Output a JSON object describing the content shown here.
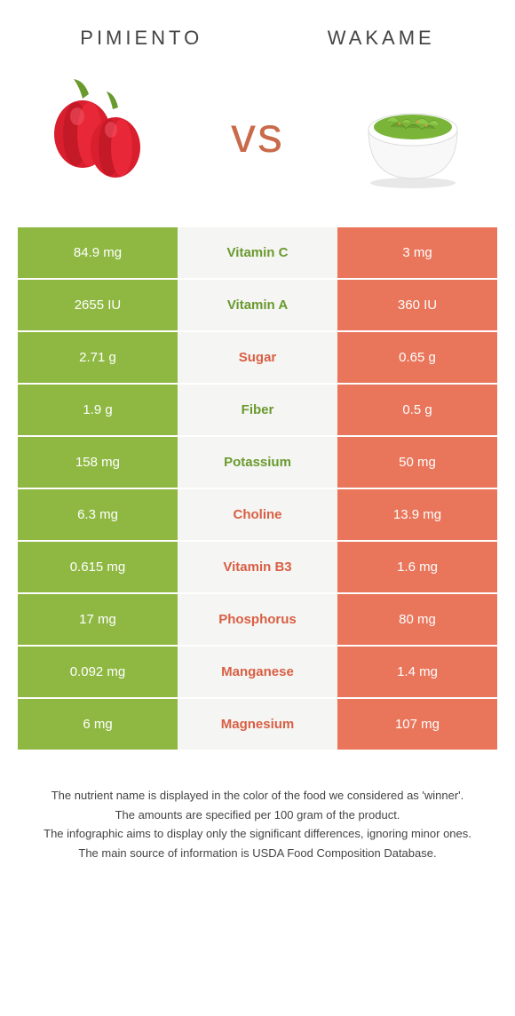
{
  "colors": {
    "left": "#8fb843",
    "right": "#e9755a",
    "middle_bg": "#f5f5f3",
    "left_text": "#6a9a2e",
    "right_text": "#d95f44",
    "vs": "#c96a4a"
  },
  "foods": {
    "left": {
      "title": "Pimiento"
    },
    "right": {
      "title": "Wakame"
    }
  },
  "vs": "vs",
  "rows": [
    {
      "left": "84.9 mg",
      "label": "Vitamin C",
      "right": "3 mg",
      "winner": "left"
    },
    {
      "left": "2655 IU",
      "label": "Vitamin A",
      "right": "360 IU",
      "winner": "left"
    },
    {
      "left": "2.71 g",
      "label": "Sugar",
      "right": "0.65 g",
      "winner": "right"
    },
    {
      "left": "1.9 g",
      "label": "Fiber",
      "right": "0.5 g",
      "winner": "left"
    },
    {
      "left": "158 mg",
      "label": "Potassium",
      "right": "50 mg",
      "winner": "left"
    },
    {
      "left": "6.3 mg",
      "label": "Choline",
      "right": "13.9 mg",
      "winner": "right"
    },
    {
      "left": "0.615 mg",
      "label": "Vitamin B3",
      "right": "1.6 mg",
      "winner": "right"
    },
    {
      "left": "17 mg",
      "label": "Phosphorus",
      "right": "80 mg",
      "winner": "right"
    },
    {
      "left": "0.092 mg",
      "label": "Manganese",
      "right": "1.4 mg",
      "winner": "right"
    },
    {
      "left": "6 mg",
      "label": "Magnesium",
      "right": "107 mg",
      "winner": "right"
    }
  ],
  "footnotes": [
    "The nutrient name is displayed in the color of the food we considered as 'winner'.",
    "The amounts are specified per 100 gram of the product.",
    "The infographic aims to display only the significant differences, ignoring minor ones.",
    "The main source of information is USDA Food Composition Database."
  ]
}
